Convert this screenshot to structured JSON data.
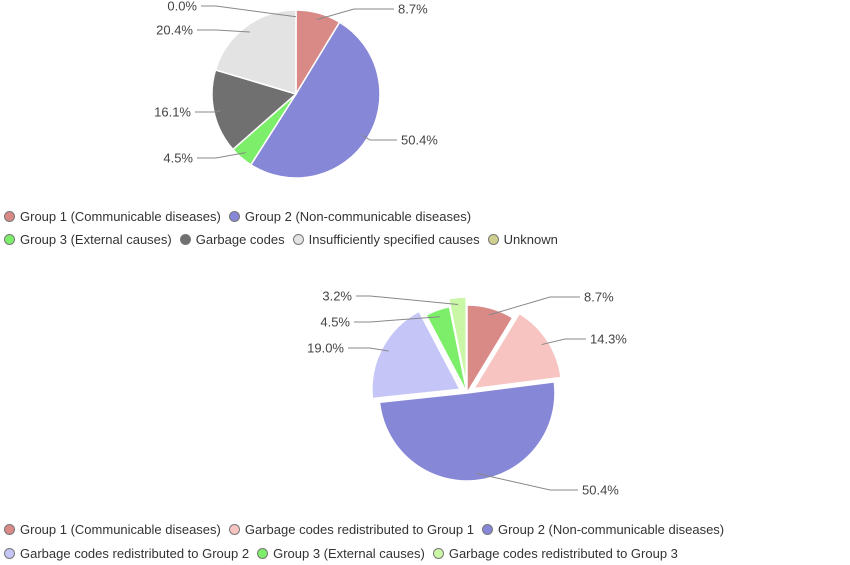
{
  "chart_data": [
    {
      "type": "pie",
      "title": "",
      "slices": [
        {
          "label": "Group 1 (Communicable diseases)",
          "value": 8.7,
          "value_label": "8.7%",
          "color": "#d98a87"
        },
        {
          "label": "Group 2 (Non-communicable diseases)",
          "value": 50.4,
          "value_label": "50.4%",
          "color": "#8787d8"
        },
        {
          "label": "Group 3 (External causes)",
          "value": 4.5,
          "value_label": "4.5%",
          "color": "#7dee6a"
        },
        {
          "label": "Garbage codes",
          "value": 16.1,
          "value_label": "16.1%",
          "color": "#707070"
        },
        {
          "label": "Insufficiently specified causes",
          "value": 20.4,
          "value_label": "20.4%",
          "color": "#e3e3e3"
        },
        {
          "label": "Unknown",
          "value": 0.0,
          "value_label": "0.0%",
          "color": "#cfcf8f"
        }
      ],
      "legend": {
        "position": "bottom",
        "rows": [
          [
            "Group 1 (Communicable diseases)",
            "Group 2 (Non-communicable diseases)"
          ],
          [
            "Group 3 (External causes)",
            "Garbage codes",
            "Insufficiently specified causes",
            "Unknown"
          ]
        ]
      }
    },
    {
      "type": "pie",
      "title": "",
      "slices": [
        {
          "label": "Group 1 (Communicable diseases)",
          "value": 8.7,
          "value_label": "8.7%",
          "color": "#d98a87",
          "exploded": false
        },
        {
          "label": "Garbage codes redistributed to Group 1",
          "value": 14.3,
          "value_label": "14.3%",
          "color": "#f7c4c2",
          "exploded": true
        },
        {
          "label": "Group 2 (Non-communicable diseases)",
          "value": 50.4,
          "value_label": "50.4%",
          "color": "#8787d8",
          "exploded": false
        },
        {
          "label": "Garbage codes redistributed to Group 2",
          "value": 19.0,
          "value_label": "19.0%",
          "color": "#c5c5f7",
          "exploded": true
        },
        {
          "label": "Group 3 (External causes)",
          "value": 4.5,
          "value_label": "4.5%",
          "color": "#7dee6a",
          "exploded": false
        },
        {
          "label": "Garbage codes redistributed to Group 3",
          "value": 3.2,
          "value_label": "3.2%",
          "color": "#c9f7a6",
          "exploded": true
        }
      ],
      "legend": {
        "position": "bottom",
        "rows": [
          [
            "Group 1 (Communicable diseases)",
            "Garbage codes redistributed to Group 1",
            "Group 2 (Non-communicable diseases)"
          ],
          [
            "Garbage codes redistributed to Group 2",
            "Group 3 (External causes)",
            "Garbage codes redistributed to Group 3"
          ]
        ]
      }
    }
  ]
}
